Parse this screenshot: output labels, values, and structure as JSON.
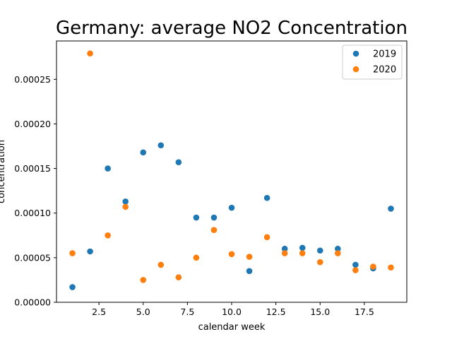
{
  "chart_data": {
    "type": "scatter",
    "title": "Germany: average NO2 Concentration",
    "xlabel": "calendar week",
    "ylabel": "concentration",
    "xlim": [
      0.1,
      19.9
    ],
    "ylim": [
      0,
      0.000293
    ],
    "xticks": [
      2.5,
      5.0,
      7.5,
      10.0,
      12.5,
      15.0,
      17.5
    ],
    "xtick_labels": [
      "2.5",
      "5.0",
      "7.5",
      "10.0",
      "12.5",
      "15.0",
      "17.5"
    ],
    "yticks": [
      0,
      5e-05,
      0.0001,
      0.00015,
      0.0002,
      0.00025
    ],
    "ytick_labels": [
      "0.00000",
      "0.00005",
      "0.00010",
      "0.00015",
      "0.00020",
      "0.00025"
    ],
    "grid": false,
    "legend_position": "top-right",
    "series": [
      {
        "name": "2019",
        "color": "#1f77b4",
        "x": [
          1,
          2,
          3,
          4,
          5,
          6,
          7,
          8,
          9,
          10,
          11,
          12,
          13,
          14,
          15,
          16,
          17,
          18,
          19
        ],
        "y": [
          1.7e-05,
          5.7e-05,
          0.00015,
          0.000113,
          0.000168,
          0.000176,
          0.000157,
          9.5e-05,
          9.5e-05,
          0.000106,
          3.5e-05,
          0.000117,
          6e-05,
          6.1e-05,
          5.8e-05,
          6e-05,
          4.2e-05,
          3.8e-05,
          0.000105
        ]
      },
      {
        "name": "2020",
        "color": "#ff7f0e",
        "x": [
          1,
          2,
          3,
          4,
          5,
          6,
          7,
          8,
          9,
          10,
          11,
          12,
          13,
          14,
          15,
          16,
          17,
          18,
          19
        ],
        "y": [
          5.5e-05,
          0.000279,
          7.5e-05,
          0.000107,
          2.5e-05,
          4.2e-05,
          2.8e-05,
          5e-05,
          8.1e-05,
          5.4e-05,
          5.1e-05,
          7.3e-05,
          5.5e-05,
          5.5e-05,
          4.5e-05,
          5.5e-05,
          3.6e-05,
          4e-05,
          3.9e-05
        ]
      }
    ]
  }
}
